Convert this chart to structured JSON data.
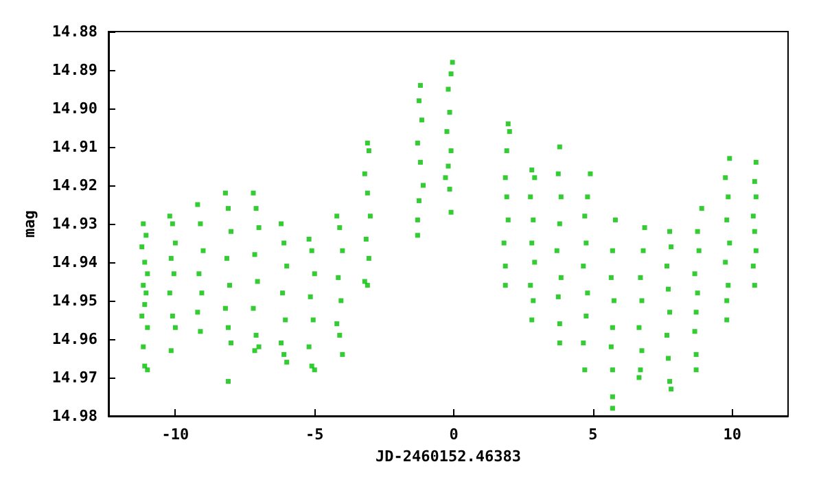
{
  "chart_data": {
    "type": "scatter",
    "xlabel": "JD-2460152.46383",
    "ylabel": "mag",
    "xlim": [
      -12.4,
      12
    ],
    "ylim": [
      14.98,
      14.88
    ],
    "xticks": [
      -10,
      -5,
      0,
      5,
      10
    ],
    "yticks": [
      14.88,
      14.89,
      {
        "value": 14.9,
        "label": "14.90"
      },
      14.91,
      14.92,
      14.93,
      14.94,
      14.95,
      14.96,
      14.97,
      14.98
    ],
    "grid": false,
    "marker": "square",
    "series": [
      {
        "color": "#00c000",
        "x": [
          -11.15,
          -11.05,
          -11.2,
          -11.1,
          -11.0,
          -11.15,
          -11.05,
          -11.1,
          -11.2,
          -11.0,
          -11.15,
          -11.1,
          -11.0,
          -10.2,
          -10.1,
          -10.0,
          -10.15,
          -10.05,
          -10.2,
          -10.1,
          -10.0,
          -10.15,
          -9.2,
          -9.1,
          -9.0,
          -9.15,
          -9.05,
          -9.2,
          -9.1,
          -8.2,
          -8.1,
          -8.0,
          -8.15,
          -8.05,
          -8.2,
          -8.1,
          -8.0,
          -8.1,
          -7.2,
          -7.1,
          -7.0,
          -7.15,
          -7.05,
          -7.2,
          -7.1,
          -7.0,
          -7.15,
          -6.2,
          -6.1,
          -6.0,
          -6.15,
          -6.05,
          -6.2,
          -6.1,
          -6.0,
          -5.2,
          -5.1,
          -5.0,
          -5.15,
          -5.05,
          -5.2,
          -5.1,
          -5.0,
          -4.2,
          -4.1,
          -4.0,
          -4.15,
          -4.05,
          -4.2,
          -4.1,
          -4.0,
          -3.1,
          -3.05,
          -3.2,
          -3.1,
          -3.0,
          -3.15,
          -3.05,
          -3.2,
          -3.1,
          -1.2,
          -1.25,
          -1.15,
          -1.3,
          -1.2,
          -1.1,
          -1.25,
          -1.3,
          -1.3,
          -0.05,
          -0.1,
          -0.2,
          -0.15,
          -0.25,
          -0.1,
          -0.2,
          -0.3,
          -0.15,
          -0.1,
          1.95,
          2.0,
          1.9,
          1.85,
          1.9,
          1.95,
          1.8,
          1.85,
          1.85,
          2.8,
          2.9,
          2.75,
          2.85,
          2.8,
          2.9,
          2.75,
          2.85,
          2.8,
          3.8,
          3.75,
          3.85,
          3.8,
          3.7,
          3.85,
          3.75,
          3.8,
          3.8,
          4.9,
          4.8,
          4.7,
          4.75,
          4.65,
          4.8,
          4.75,
          4.65,
          4.7,
          5.8,
          5.7,
          5.65,
          5.75,
          5.7,
          5.65,
          5.7,
          5.7,
          5.7,
          6.85,
          6.8,
          6.7,
          6.75,
          6.65,
          6.75,
          6.7,
          6.65,
          7.75,
          7.8,
          7.65,
          7.7,
          7.75,
          7.65,
          7.7,
          7.75,
          7.8,
          8.9,
          8.75,
          8.8,
          8.65,
          8.75,
          8.7,
          8.65,
          8.7,
          8.7,
          9.9,
          9.75,
          9.85,
          9.8,
          9.9,
          9.75,
          9.85,
          9.8,
          9.8,
          10.85,
          10.8,
          10.85,
          10.75,
          10.8,
          10.85,
          10.75,
          10.8
        ],
        "values": [
          14.93,
          14.933,
          14.936,
          14.94,
          14.943,
          14.946,
          14.948,
          14.951,
          14.954,
          14.957,
          14.962,
          14.967,
          14.968,
          14.928,
          14.93,
          14.935,
          14.939,
          14.943,
          14.948,
          14.954,
          14.957,
          14.963,
          14.925,
          14.93,
          14.937,
          14.943,
          14.948,
          14.953,
          14.958,
          14.922,
          14.926,
          14.932,
          14.939,
          14.946,
          14.952,
          14.957,
          14.961,
          14.971,
          14.922,
          14.926,
          14.931,
          14.938,
          14.945,
          14.952,
          14.959,
          14.962,
          14.963,
          14.93,
          14.935,
          14.941,
          14.948,
          14.955,
          14.961,
          14.964,
          14.966,
          14.934,
          14.937,
          14.943,
          14.949,
          14.955,
          14.962,
          14.967,
          14.968,
          14.928,
          14.931,
          14.937,
          14.944,
          14.95,
          14.956,
          14.959,
          14.964,
          14.909,
          14.911,
          14.917,
          14.922,
          14.928,
          14.934,
          14.939,
          14.945,
          14.946,
          14.894,
          14.898,
          14.903,
          14.909,
          14.914,
          14.92,
          14.924,
          14.929,
          14.933,
          14.888,
          14.891,
          14.895,
          14.901,
          14.906,
          14.911,
          14.915,
          14.918,
          14.921,
          14.927,
          14.904,
          14.906,
          14.911,
          14.918,
          14.923,
          14.929,
          14.935,
          14.941,
          14.946,
          14.916,
          14.918,
          14.923,
          14.929,
          14.935,
          14.94,
          14.946,
          14.95,
          14.955,
          14.91,
          14.917,
          14.923,
          14.93,
          14.937,
          14.944,
          14.949,
          14.956,
          14.961,
          14.917,
          14.923,
          14.928,
          14.935,
          14.941,
          14.948,
          14.954,
          14.961,
          14.968,
          14.929,
          14.937,
          14.944,
          14.95,
          14.957,
          14.962,
          14.968,
          14.975,
          14.978,
          14.931,
          14.937,
          14.944,
          14.95,
          14.957,
          14.963,
          14.968,
          14.97,
          14.932,
          14.936,
          14.941,
          14.947,
          14.953,
          14.959,
          14.965,
          14.971,
          14.973,
          14.926,
          14.932,
          14.937,
          14.943,
          14.948,
          14.953,
          14.958,
          14.964,
          14.968,
          14.913,
          14.918,
          14.923,
          14.929,
          14.935,
          14.94,
          14.946,
          14.95,
          14.955,
          14.914,
          14.919,
          14.923,
          14.928,
          14.932,
          14.937,
          14.941,
          14.946
        ]
      }
    ]
  }
}
